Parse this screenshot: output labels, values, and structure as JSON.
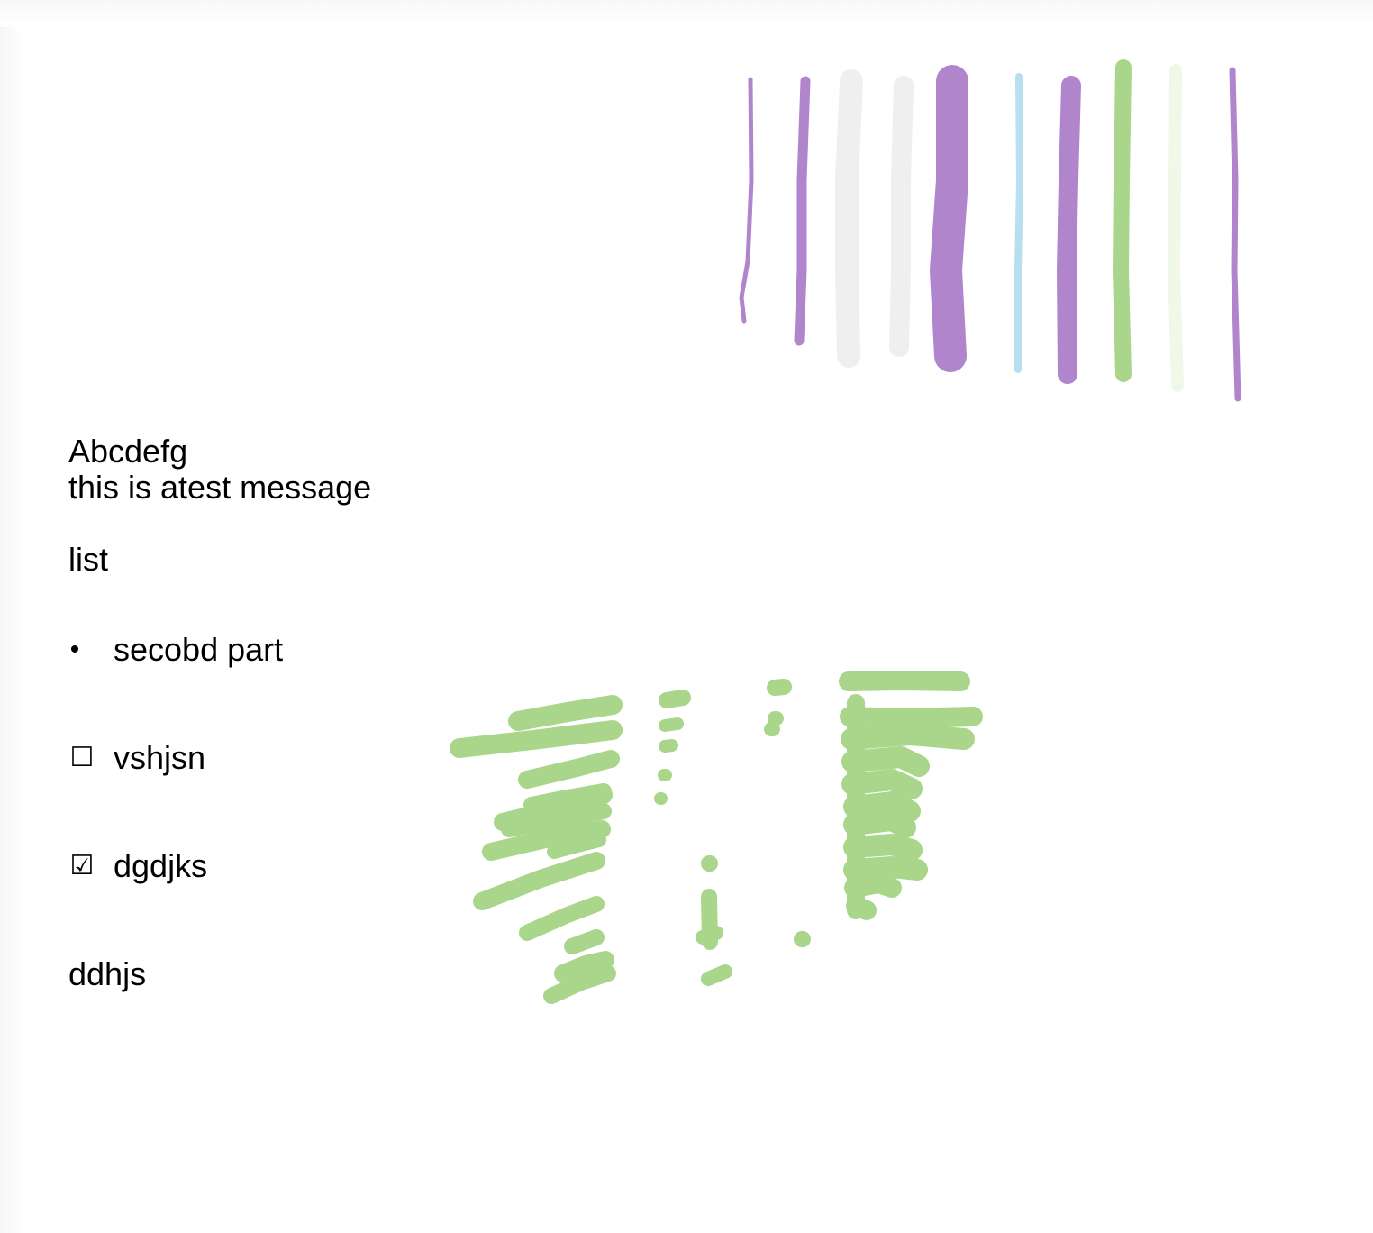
{
  "note": {
    "title": "Abcdefg",
    "line": "this is atest message",
    "list_heading": "list",
    "bullet_items": [
      {
        "marker": "•",
        "text": "secobd part"
      }
    ],
    "checklist": [
      {
        "marker": "☐",
        "checked": false,
        "text": "vshjsn"
      },
      {
        "marker": "☑",
        "checked": true,
        "text": "dgdjks"
      }
    ],
    "footer_text": "ddhjs"
  },
  "ink_colors": {
    "purple": "#b085cc",
    "light_gray": "#efefef",
    "light_blue": "#b7dfee",
    "green": "#a9d68a",
    "pale_green": "#f0f8ea"
  }
}
